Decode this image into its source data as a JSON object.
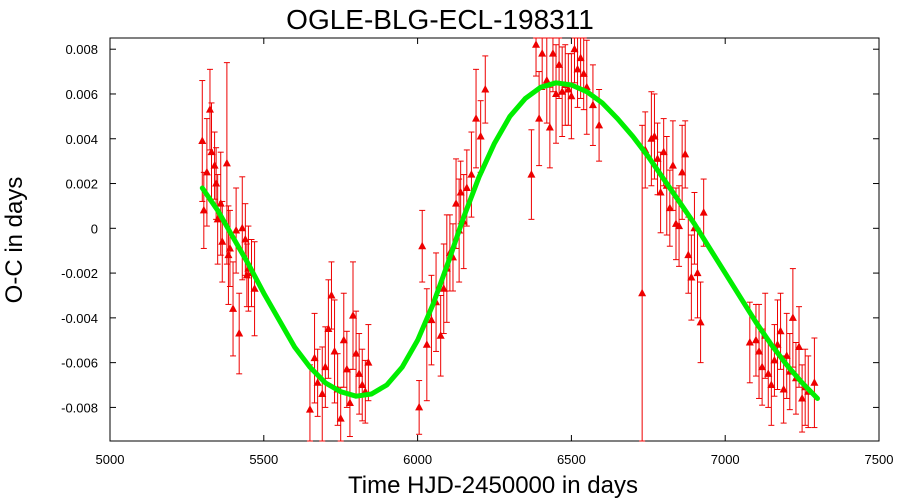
{
  "chart_data": {
    "type": "scatter",
    "title": "OGLE-BLG-ECL-198311",
    "xlabel": "Time HJD-2450000 in days",
    "ylabel": "O-C in days",
    "xlim": [
      5000,
      7500
    ],
    "ylim": [
      -0.0095,
      0.0085
    ],
    "x_ticks": [
      5000,
      5500,
      6000,
      6500,
      7000,
      7500
    ],
    "x_tick_labels": [
      "5000",
      "5500",
      "6000",
      "6500",
      "7000",
      "7500"
    ],
    "y_ticks": [
      -0.008,
      -0.006,
      -0.004,
      -0.002,
      0,
      0.002,
      0.004,
      0.006,
      0.008
    ],
    "y_tick_labels": [
      "-0.008",
      "-0.006",
      "-0.004",
      "-0.002",
      "0",
      "0.002",
      "0.004",
      "0.006",
      "0.008"
    ],
    "grid": false,
    "colors": {
      "points": "#ee0000",
      "fit": "#00ee00"
    },
    "series": [
      {
        "kind": "points-with-errorbars",
        "x": [
          5300,
          5305,
          5315,
          5325,
          5330,
          5340,
          5345,
          5350,
          5360,
          5365,
          5380,
          5385,
          5390,
          5400,
          5410,
          5420,
          5430,
          5440,
          5445,
          5450,
          5460,
          5470,
          5650,
          5665,
          5675,
          5690,
          5700,
          5710,
          5720,
          5730,
          5740,
          5750,
          5760,
          5770,
          5780,
          5790,
          5800,
          5810,
          5820,
          5830,
          5840,
          6005,
          6015,
          6030,
          6045,
          6060,
          6075,
          6085,
          6095,
          6105,
          6115,
          6125,
          6135,
          6140,
          6150,
          6160,
          6175,
          6190,
          6205,
          6220,
          6370,
          6385,
          6395,
          6405,
          6420,
          6430,
          6440,
          6450,
          6460,
          6470,
          6480,
          6490,
          6500,
          6510,
          6520,
          6530,
          6540,
          6550,
          6570,
          6590,
          6730,
          6740,
          6760,
          6770,
          6780,
          6790,
          6800,
          6810,
          6820,
          6830,
          6840,
          6850,
          6860,
          6870,
          6880,
          6890,
          6900,
          6910,
          6920,
          6930,
          7080,
          7100,
          7110,
          7120,
          7130,
          7140,
          7150,
          7160,
          7170,
          7180,
          7190,
          7200,
          7210,
          7220,
          7230,
          7240,
          7250,
          7260,
          7270,
          7290
        ],
        "y": [
          0.0039,
          0.0008,
          0.0025,
          0.0053,
          0.0034,
          0.0028,
          0.002,
          0.0004,
          0.0011,
          -0.0006,
          0.0029,
          -0.0012,
          -0.0009,
          -0.0036,
          -0.0001,
          -0.0047,
          0.0,
          -0.0005,
          -0.0021,
          -0.0018,
          -0.002,
          -0.0027,
          -0.0081,
          -0.0058,
          -0.0069,
          -0.0074,
          -0.0062,
          -0.0045,
          -0.003,
          -0.0055,
          -0.0072,
          -0.0085,
          -0.005,
          -0.0063,
          -0.0078,
          -0.0039,
          -0.0056,
          -0.0065,
          -0.007,
          -0.0073,
          -0.006,
          -0.008,
          -0.0008,
          -0.0052,
          -0.0041,
          -0.0033,
          -0.0048,
          -0.0027,
          -0.0018,
          -0.0011,
          -0.0013,
          0.0011,
          -0.0001,
          0.0016,
          0.0003,
          0.0018,
          0.0024,
          0.0049,
          0.0041,
          0.0062,
          0.0024,
          0.0082,
          0.0049,
          0.0078,
          0.0066,
          0.0045,
          0.0078,
          0.006,
          0.0073,
          0.0061,
          0.0064,
          0.0062,
          0.0059,
          0.008,
          0.0071,
          0.0076,
          0.0069,
          0.0063,
          0.0055,
          0.0046,
          -0.0029,
          0.0035,
          0.004,
          0.0041,
          0.0031,
          0.0016,
          0.0034,
          0.0019,
          0.0009,
          0.0028,
          0.0002,
          0.0001,
          0.0025,
          0.0033,
          -0.0012,
          -0.0022,
          0.0,
          -0.002,
          -0.0042,
          0.0007,
          -0.0051,
          -0.005,
          -0.0055,
          -0.0062,
          -0.0048,
          -0.0065,
          -0.007,
          -0.0059,
          -0.0052,
          -0.0046,
          -0.0072,
          -0.0057,
          -0.0064,
          -0.004,
          -0.0067,
          -0.0053,
          -0.0076,
          -0.0071,
          -0.0073,
          -0.0069
        ],
        "err": [
          0.0027,
          0.0017,
          0.0024,
          0.0018,
          0.0022,
          0.0015,
          0.0016,
          0.002,
          0.0023,
          0.0018,
          0.0045,
          0.0022,
          0.0017,
          0.0021,
          0.0019,
          0.0018,
          0.0023,
          0.0016,
          0.0014,
          0.0019,
          0.0015,
          0.0021,
          0.002,
          0.002,
          0.0015,
          0.0021,
          0.0018,
          0.0022,
          0.0015,
          0.0023,
          0.0016,
          0.0014,
          0.0021,
          0.0017,
          0.0015,
          0.0024,
          0.0019,
          0.0018,
          0.0016,
          0.0014,
          0.0017,
          0.0012,
          0.0016,
          0.0025,
          0.002,
          0.0022,
          0.0018,
          0.002,
          0.0024,
          0.0017,
          0.0015,
          0.002,
          0.0023,
          0.0014,
          0.0021,
          0.0017,
          0.0019,
          0.0022,
          0.0016,
          0.0015,
          0.002,
          0.0014,
          0.0021,
          0.0016,
          0.0019,
          0.0018,
          0.0017,
          0.0022,
          0.0015,
          0.002,
          0.0018,
          0.0016,
          0.0019,
          0.0015,
          0.0017,
          0.0018,
          0.0016,
          0.0021,
          0.0018,
          0.0016,
          0.0075,
          0.0017,
          0.0021,
          0.0019,
          0.0016,
          0.0018,
          0.0015,
          0.0022,
          0.0017,
          0.002,
          0.0016,
          0.0018,
          0.0021,
          0.0015,
          0.0017,
          0.0019,
          0.0016,
          0.002,
          0.0018,
          0.0015,
          0.0018,
          0.0016,
          0.0021,
          0.0017,
          0.0019,
          0.0015,
          0.0018,
          0.0016,
          0.002,
          0.0017,
          0.0015,
          0.0019,
          0.0017,
          0.0022,
          0.0016,
          0.0018,
          0.0015,
          0.0017,
          0.0016,
          0.002
        ]
      },
      {
        "kind": "fit-curve",
        "x": [
          5300,
          5350,
          5400,
          5450,
          5500,
          5550,
          5600,
          5650,
          5700,
          5750,
          5800,
          5850,
          5900,
          5950,
          6000,
          6050,
          6100,
          6150,
          6200,
          6250,
          6300,
          6350,
          6400,
          6450,
          6500,
          6550,
          6600,
          6650,
          6700,
          6750,
          6800,
          6850,
          6900,
          6950,
          7000,
          7050,
          7100,
          7150,
          7200,
          7250,
          7300
        ],
        "y": [
          0.0018,
          0.0008,
          -0.0004,
          -0.0016,
          -0.0029,
          -0.0041,
          -0.0053,
          -0.0062,
          -0.0069,
          -0.0073,
          -0.0075,
          -0.0074,
          -0.007,
          -0.0062,
          -0.005,
          -0.0034,
          -0.0015,
          0.0005,
          0.0023,
          0.0038,
          0.005,
          0.0058,
          0.0063,
          0.0065,
          0.0064,
          0.0061,
          0.0056,
          0.0049,
          0.0041,
          0.0032,
          0.0022,
          0.0012,
          0.0002,
          -0.0009,
          -0.002,
          -0.0031,
          -0.0042,
          -0.0052,
          -0.0061,
          -0.0069,
          -0.0076
        ]
      }
    ]
  }
}
